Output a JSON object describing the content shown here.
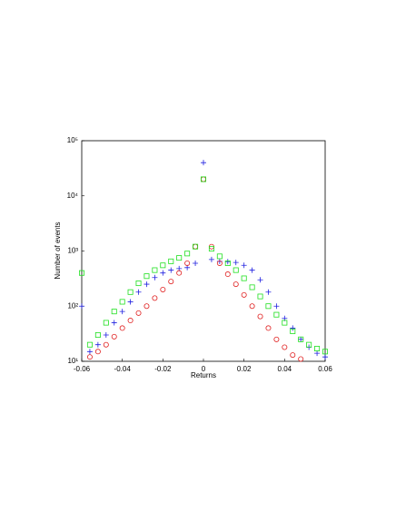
{
  "chart_data": {
    "type": "scatter",
    "xlabel": "Returns",
    "ylabel": "Number of events",
    "x": [
      -0.06,
      -0.056,
      -0.052,
      -0.048,
      -0.044,
      -0.04,
      -0.036,
      -0.032,
      -0.028,
      -0.024,
      -0.02,
      -0.016,
      -0.012,
      -0.008,
      -0.004,
      0,
      0.004,
      0.008,
      0.012,
      0.016,
      0.02,
      0.024,
      0.028,
      0.032,
      0.036,
      0.04,
      0.044,
      0.048,
      0.052,
      0.056,
      0.06
    ],
    "series": [
      {
        "color": "#2020e0",
        "marker": "plus",
        "values": [
          100,
          15,
          20,
          30,
          50,
          80,
          120,
          180,
          250,
          330,
          400,
          450,
          480,
          500,
          600,
          40000,
          700,
          650,
          640,
          620,
          550,
          450,
          300,
          180,
          100,
          60,
          40,
          25,
          18,
          14,
          12
        ]
      },
      {
        "color": "#e02020",
        "marker": "circle",
        "values": [
          null,
          12,
          15,
          20,
          28,
          40,
          55,
          75,
          100,
          140,
          200,
          280,
          400,
          600,
          1200,
          20000,
          1200,
          600,
          380,
          250,
          160,
          100,
          65,
          40,
          25,
          18,
          13,
          11,
          null,
          null,
          null
        ]
      },
      {
        "color": "#20e020",
        "marker": "square",
        "values": [
          400,
          20,
          30,
          50,
          80,
          120,
          180,
          260,
          350,
          450,
          550,
          650,
          750,
          900,
          1200,
          20000,
          1100,
          800,
          600,
          450,
          320,
          220,
          150,
          100,
          70,
          50,
          35,
          25,
          20,
          17,
          15
        ]
      }
    ],
    "xlim": [
      -0.06,
      0.06
    ],
    "xticks": [
      -0.06,
      -0.04,
      -0.02,
      0,
      0.02,
      0.04,
      0.06
    ],
    "ylim": [
      10,
      100000
    ],
    "log_y": true,
    "yticks": [
      {
        "value": 10,
        "label": "10¹"
      },
      {
        "value": 100,
        "label": "10²"
      },
      {
        "value": 1000,
        "label": "10³"
      },
      {
        "value": 10000,
        "label": "10⁴"
      },
      {
        "value": 100000,
        "label": "10⁵"
      }
    ]
  }
}
